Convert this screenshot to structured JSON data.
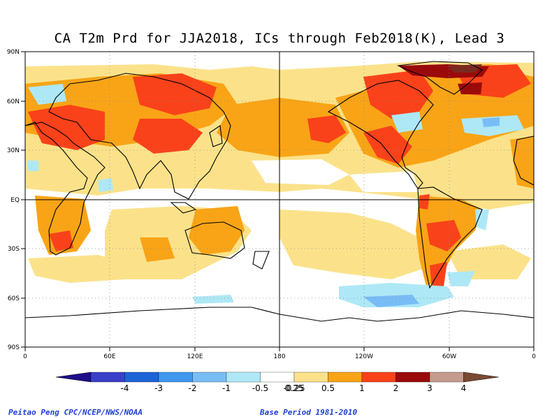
{
  "title": "CA T2m Prd for JJA2018, ICs through Feb2018(K), Lead 3",
  "lat_labels": [
    "90N",
    "60N",
    "30N",
    "EQ",
    "30S",
    "60S",
    "90S"
  ],
  "lon_labels": [
    "0",
    "60E",
    "120E",
    "180",
    "120W",
    "60W",
    "0"
  ],
  "colorbar": {
    "labels": [
      "-4",
      "-3",
      "-2",
      "-1",
      "-0.5",
      "-0.25",
      "0.25",
      "0.5",
      "1",
      "2",
      "3",
      "4"
    ],
    "colors": [
      "#1c0e8a",
      "#3a3fc8",
      "#1d64d6",
      "#3f97ee",
      "#79bdf6",
      "#aee8f6",
      "#ffffff",
      "#fbe28a",
      "#f9a416",
      "#f9421a",
      "#9b0a0a",
      "#c49b8c",
      "#7a4a32"
    ]
  },
  "credit_left": "Peitao Peng CPC/NCEP/NWS/NOAA",
  "credit_right": "Base Period 1981-2010"
}
